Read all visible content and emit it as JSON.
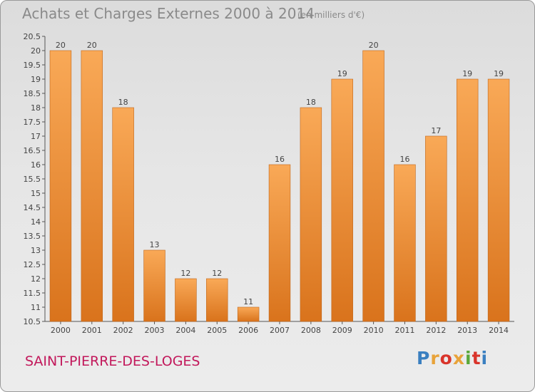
{
  "header": {
    "title": "Achats et Charges Externes 2000 à 2014",
    "subtitle": "(en milliers d'€)"
  },
  "footer": {
    "commune": "SAINT-PIERRE-DES-LOGES",
    "logo": "Proxiti",
    "logo_colors": [
      "#3a7fc0",
      "#e8a33a",
      "#d9342b",
      "#e8a33a",
      "#5aa83a",
      "#d9342b",
      "#3a7fc0"
    ]
  },
  "colors": {
    "bar_light": "#f9a957",
    "bar_dark": "#d9731c",
    "bar_edge": "#c0661a"
  },
  "chart_data": {
    "type": "bar",
    "title": "Achats et Charges Externes 2000 à 2014",
    "subtitle": "(en milliers d'€)",
    "categories": [
      "2000",
      "2001",
      "2002",
      "2003",
      "2004",
      "2005",
      "2006",
      "2007",
      "2008",
      "2009",
      "2010",
      "2011",
      "2012",
      "2013",
      "2014"
    ],
    "values": [
      20,
      20,
      18,
      13,
      12,
      12,
      11,
      16,
      18,
      19,
      20,
      16,
      17,
      19,
      19
    ],
    "ylim": [
      10.5,
      20.5
    ],
    "yticks": [
      "10.5",
      "11",
      "11.5",
      "12",
      "12.5",
      "13",
      "13.5",
      "14",
      "14.5",
      "15",
      "15.5",
      "16",
      "16.5",
      "17",
      "17.5",
      "18",
      "18.5",
      "19",
      "19.5",
      "20",
      "20.5"
    ],
    "grid": false,
    "legend": "none"
  }
}
